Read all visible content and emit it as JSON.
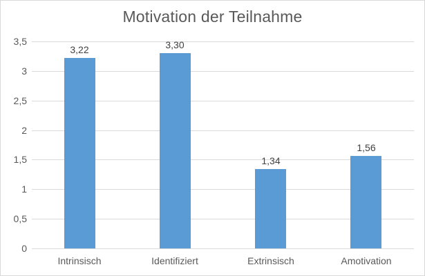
{
  "chart_data": {
    "type": "bar",
    "title": "Motivation der Teilnahme",
    "categories": [
      "Intrinsisch",
      "Identifiziert",
      "Extrinsisch",
      "Amotivation"
    ],
    "values": [
      3.22,
      3.3,
      1.34,
      1.56
    ],
    "value_labels": [
      "3,22",
      "3,30",
      "1,34",
      "1,56"
    ],
    "xlabel": "",
    "ylabel": "",
    "ylim": [
      0,
      3.5
    ],
    "ytick_step": 0.5,
    "ytick_labels": [
      "0",
      "0,5",
      "1",
      "1,5",
      "2",
      "2,5",
      "3",
      "3,5"
    ],
    "grid": true,
    "legend": false,
    "colors": {
      "bar": "#5B9BD5",
      "gridline": "#D9D9D9",
      "axis_line": "#D9D9D9",
      "title_text": "#595959",
      "tick_text": "#595959",
      "data_label_text": "#404040",
      "border": "#D9D9D9",
      "background": "#FFFFFF"
    }
  }
}
